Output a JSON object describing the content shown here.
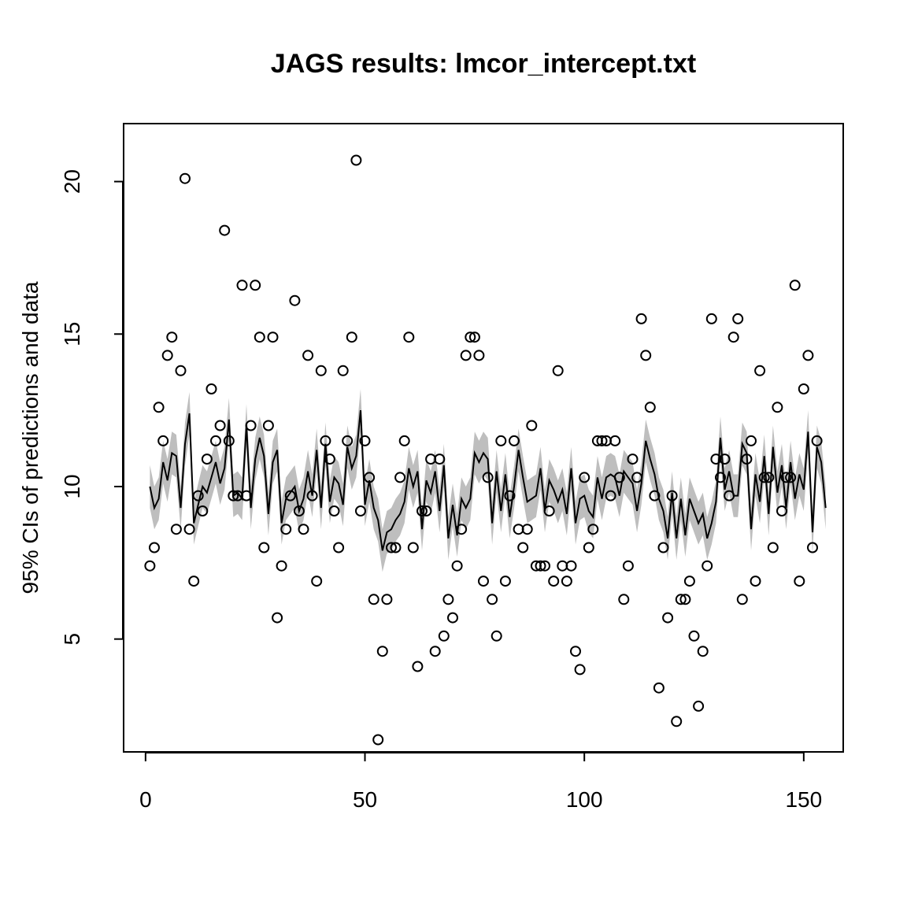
{
  "chart_data": {
    "type": "line",
    "title": "JAGS results: lmcor_intercept.txt",
    "xlabel": "",
    "ylabel": "95% CIs of predictions and data",
    "xlim": [
      -5,
      159
    ],
    "ylim": [
      1.3,
      21.9
    ],
    "x_ticks": [
      0,
      50,
      100,
      150
    ],
    "y_ticks": [
      5,
      10,
      15,
      20
    ],
    "colors": {
      "band": "#bebebe",
      "line": "#000000",
      "points": "#000000"
    },
    "prediction_mean": [
      10.0,
      9.3,
      9.6,
      10.8,
      10.2,
      11.1,
      11.0,
      9.3,
      11.4,
      12.4,
      8.8,
      9.4,
      10.0,
      9.8,
      10.3,
      10.8,
      10.1,
      10.6,
      12.2,
      9.7,
      9.8,
      9.6,
      12.0,
      9.3,
      10.9,
      11.6,
      11.0,
      9.1,
      10.8,
      11.2,
      8.8,
      9.6,
      9.8,
      10.0,
      9.2,
      9.6,
      10.5,
      9.7,
      11.2,
      9.3,
      11.4,
      9.5,
      10.3,
      10.1,
      9.4,
      11.3,
      10.6,
      11.0,
      12.5,
      9.4,
      10.2,
      9.3,
      8.9,
      7.9,
      8.5,
      8.6,
      8.9,
      9.1,
      9.5,
      10.6,
      10.0,
      10.5,
      8.6,
      10.2,
      9.8,
      10.5,
      9.2,
      10.7,
      8.3,
      9.4,
      8.4,
      9.6,
      9.3,
      9.6,
      11.1,
      10.8,
      11.1,
      10.9,
      8.8,
      10.5,
      9.2,
      10.4,
      9.0,
      10.0,
      11.2,
      10.3,
      9.5,
      9.6,
      9.7,
      10.6,
      9.2,
      10.2,
      9.9,
      9.5,
      9.9,
      9.1,
      10.6,
      8.8,
      9.6,
      9.7,
      9.2,
      9.0,
      10.3,
      9.6,
      10.3,
      10.4,
      10.3,
      9.7,
      10.5,
      10.3,
      10.1,
      9.2,
      10.1,
      11.5,
      10.9,
      10.4,
      9.6,
      9.2,
      8.3,
      9.8,
      8.3,
      9.6,
      8.4,
      9.6,
      9.2,
      8.8,
      9.1,
      8.3,
      8.8,
      9.5,
      11.6,
      9.9,
      10.5,
      9.7,
      9.7,
      11.4,
      11.1,
      8.6,
      10.4,
      9.5,
      11.0,
      9.1,
      11.3,
      9.8,
      10.7,
      9.3,
      10.8,
      9.6,
      10.4,
      9.9,
      11.8,
      8.5,
      11.3,
      10.8,
      9.3
    ],
    "band_halfwidth": 0.7,
    "observed": [
      7.4,
      8.0,
      12.6,
      11.5,
      14.3,
      14.9,
      8.6,
      13.8,
      20.1,
      8.6,
      6.9,
      9.7,
      9.2,
      10.9,
      13.2,
      11.5,
      12.0,
      18.4,
      11.5,
      9.7,
      9.7,
      16.6,
      9.7,
      12.0,
      16.6,
      14.9,
      8.0,
      12.0,
      14.9,
      5.7,
      7.4,
      8.6,
      9.7,
      16.1,
      9.2,
      8.6,
      14.3,
      9.7,
      6.9,
      13.8,
      11.5,
      10.9,
      9.2,
      8.0,
      13.8,
      11.5,
      14.9,
      20.7,
      9.2,
      11.5,
      10.3,
      6.3,
      1.7,
      4.6,
      6.3,
      8.0,
      8.0,
      10.3,
      11.5,
      14.9,
      8.0,
      4.1,
      9.2,
      9.2,
      10.9,
      4.6,
      10.9,
      5.1,
      6.3,
      5.7,
      7.4,
      8.6,
      14.3,
      14.9,
      14.9,
      14.3,
      6.9,
      10.3,
      6.3,
      5.1,
      11.5,
      6.9,
      9.7,
      11.5,
      8.6,
      8.0,
      8.6,
      12.0,
      7.4,
      7.4,
      7.4,
      9.2,
      6.9,
      13.8,
      7.4,
      6.9,
      7.4,
      4.6,
      4.0,
      10.3,
      8.0,
      8.6,
      11.5,
      11.5,
      11.5,
      9.7,
      11.5,
      10.3,
      6.3,
      7.4,
      10.9,
      10.3,
      15.5,
      14.3,
      12.6,
      9.7,
      3.4,
      8.0,
      5.7,
      9.7,
      2.3,
      6.3,
      6.3,
      6.9,
      5.1,
      2.8,
      4.6,
      7.4,
      15.5,
      10.9,
      10.3,
      10.9,
      9.7,
      14.9,
      15.5,
      6.3,
      10.9,
      11.5,
      6.9,
      13.8,
      10.3,
      10.3,
      8.0,
      12.6,
      9.2,
      10.3,
      10.3,
      16.6,
      6.9,
      13.2,
      14.3,
      8.0,
      11.5
    ]
  }
}
